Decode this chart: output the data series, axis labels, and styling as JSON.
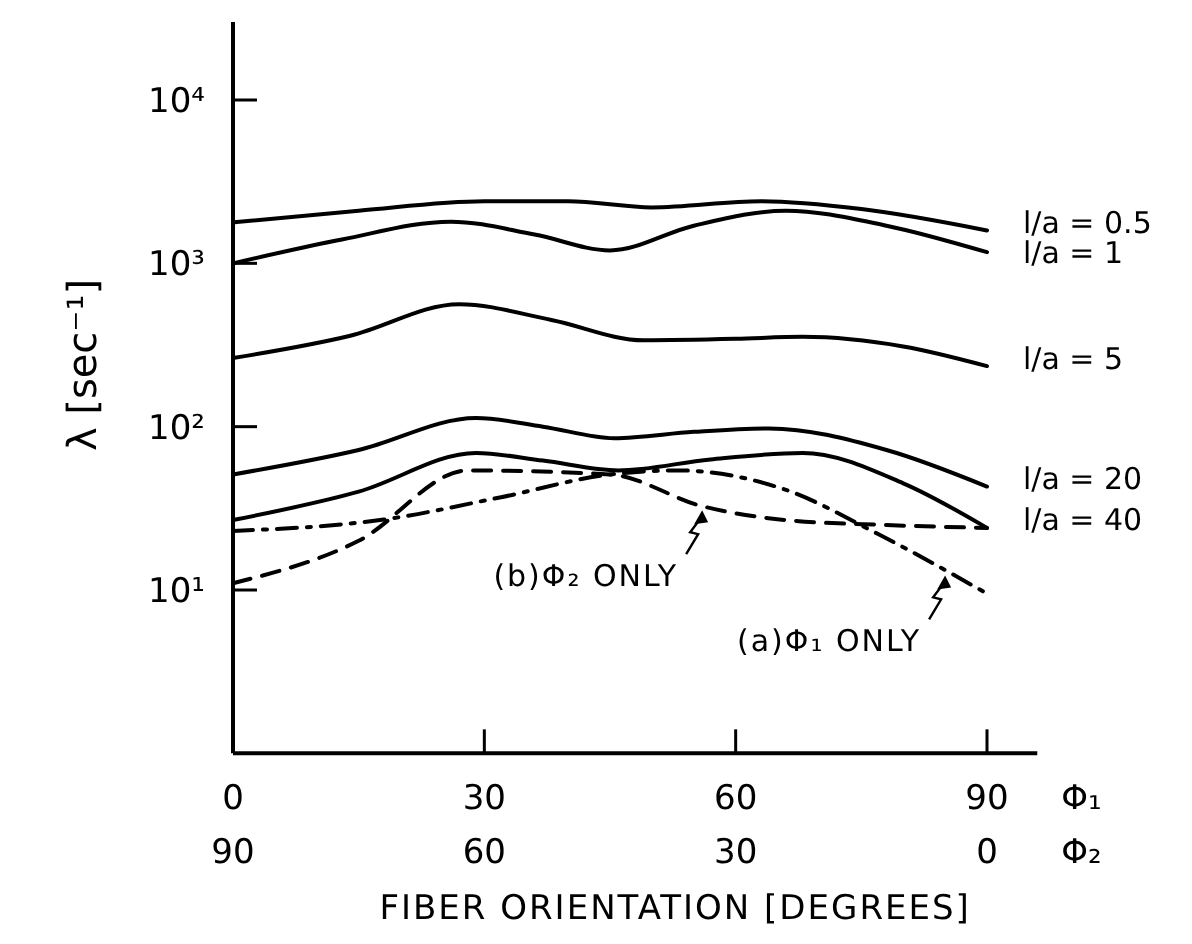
{
  "chart_data": {
    "type": "line",
    "xlabel": "FIBER ORIENTATION [DEGREES]",
    "ylabel": "λ [sec⁻¹]",
    "x2label": "Φ₂",
    "log": "y",
    "xlim": [
      0,
      96
    ],
    "xticks": [
      0,
      30,
      60,
      90
    ],
    "x2lim": [
      90,
      -6
    ],
    "x2ticks": [
      90,
      60,
      30,
      0
    ],
    "ylim": [
      1,
      30000
    ],
    "yticks": [
      {
        "value": 10,
        "label": "10¹"
      },
      {
        "value": 100,
        "label": "10²"
      },
      {
        "value": 1000,
        "label": "10³"
      },
      {
        "value": 10000,
        "label": "10⁴"
      }
    ],
    "grid": false,
    "marker": "none",
    "series": [
      {
        "name": "l/a = 0.5",
        "color": "#000000",
        "line_style": "solid",
        "x": [
          0,
          15,
          30,
          40,
          50,
          63,
          75,
          90
        ],
        "values": [
          1780,
          2100,
          2400,
          2400,
          2200,
          2400,
          2150,
          1590
        ]
      },
      {
        "name": "l/a = 1",
        "color": "#000000",
        "line_style": "solid",
        "x": [
          0,
          13,
          26,
          36,
          45,
          55,
          66,
          78,
          90
        ],
        "values": [
          1000,
          1400,
          1800,
          1500,
          1200,
          1700,
          2100,
          1700,
          1170
        ]
      },
      {
        "name": "l/a = 5",
        "color": "#000000",
        "line_style": "solid",
        "x": [
          0,
          14,
          27,
          38,
          49,
          60,
          68,
          80,
          90
        ],
        "values": [
          263,
          360,
          562,
          450,
          338,
          345,
          355,
          310,
          235
        ]
      },
      {
        "name": "l/a = 20",
        "color": "#000000",
        "line_style": "solid",
        "x": [
          0,
          15,
          29,
          37,
          45.5,
          55,
          64,
          78,
          90
        ],
        "values": [
          51,
          72,
          113,
          100,
          85,
          93,
          97.6,
          72,
          43
        ]
      },
      {
        "name": "l/a = 40",
        "color": "#000000",
        "line_style": "solid",
        "x": [
          0,
          15,
          29,
          37,
          46,
          57,
          68,
          80,
          90
        ],
        "values": [
          26.8,
          40,
          69,
          62,
          54,
          63,
          69,
          45,
          24
        ]
      },
      {
        "color": "#000000",
        "line_style": "dashdot",
        "x": [
          0,
          18,
          32,
          45,
          53,
          66,
          77,
          90
        ],
        "values": [
          23,
          27,
          37,
          51,
          54,
          41,
          22,
          9.5
        ]
      },
      {
        "color": "#000000",
        "line_style": "dashed",
        "x": [
          0,
          15,
          28,
          45,
          56,
          66,
          78,
          90
        ],
        "values": [
          11,
          20,
          54,
          51,
          32.6,
          26.8,
          25,
          24
        ]
      }
    ],
    "annotations": [
      "Φ₁",
      {
        "text": "(b)Φ₂ ONLY",
        "x": 56,
        "y": 32.6
      },
      {
        "text": "(a)Φ₁ ONLY",
        "x": 85,
        "y": 13
      }
    ]
  }
}
